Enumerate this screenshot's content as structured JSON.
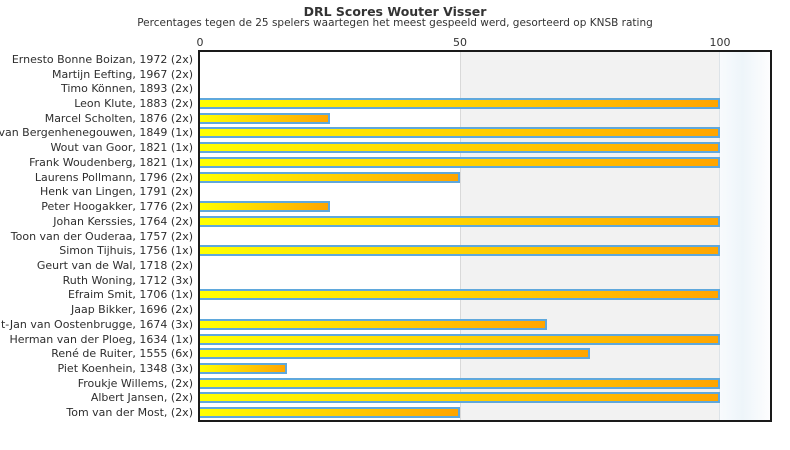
{
  "chart_data": {
    "type": "bar",
    "orientation": "horizontal",
    "title": "DRL Scores Wouter Visser",
    "subtitle": "Percentages tegen de 25 spelers waartegen het meest gespeeld werd, gesorteerd op KNSB rating",
    "xlabel": "",
    "ylabel": "",
    "xlim": [
      0,
      110
    ],
    "x_ticks": [
      "0",
      "50",
      "100"
    ],
    "x_tick_values": [
      0,
      50,
      100
    ],
    "grid": false,
    "legend": false,
    "shaded_band": {
      "from": 50,
      "to": 100,
      "color": "#f2f2f2"
    },
    "bar_fill_gradient": [
      "#ffff00",
      "#ffa500"
    ],
    "bar_border_color": "#5fa8dc",
    "categories": [
      "Ernesto Bonne Boizan, 1972 (2x)",
      "Martijn Eefting, 1967 (2x)",
      "Timo Können, 1893 (2x)",
      "Leon Klute, 1883 (2x)",
      "Marcel Scholten, 1876 (2x)",
      "van Bergenhenegouwen, 1849 (1x)",
      "Wout van Goor, 1821 (1x)",
      "Frank Woudenberg, 1821 (1x)",
      "Laurens Pollmann, 1796 (2x)",
      "Henk van Lingen, 1791 (2x)",
      "Peter Hoogakker, 1776 (2x)",
      "Johan Kerssies, 1764 (2x)",
      "Toon van der Ouderaa, 1757 (2x)",
      "Simon Tijhuis, 1756 (1x)",
      "Geurt van de Wal, 1718 (2x)",
      "Ruth Woning, 1712 (3x)",
      "Efraim Smit, 1706 (1x)",
      "Jaap Bikker, 1696 (2x)",
      "t-Jan van Oostenbrugge, 1674 (3x)",
      "Herman van der Ploeg, 1634 (1x)",
      "René de Ruiter, 1555 (6x)",
      "Piet Koenhein, 1348 (3x)",
      "Froukje Willems,  (2x)",
      "Albert Jansen,  (2x)",
      "Tom van der Most,  (2x)"
    ],
    "values": [
      0,
      0,
      0,
      100,
      25,
      100,
      100,
      100,
      50,
      0,
      25,
      100,
      0,
      100,
      0,
      0,
      100,
      0,
      66.7,
      100,
      75,
      16.7,
      100,
      100,
      50
    ]
  }
}
